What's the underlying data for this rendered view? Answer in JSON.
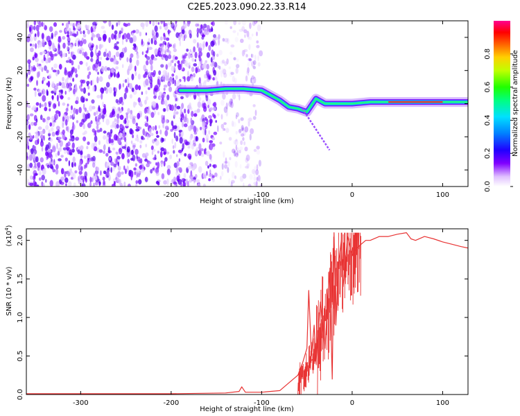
{
  "title": "C2E5.2023.090.22.33.R14",
  "chart_data": [
    {
      "type": "heatmap",
      "xlabel": "Height of straight line (km)",
      "ylabel": "Frequency (Hz)",
      "xlim": [
        -360,
        128
      ],
      "ylim": [
        -50,
        50
      ],
      "xticks": [
        -300,
        -200,
        -100,
        0,
        100
      ],
      "yticks": [
        -40,
        -20,
        0,
        20,
        40
      ],
      "noise_region_x": [
        -360,
        -100
      ],
      "signal_track": {
        "x": [
          -190,
          -160,
          -140,
          -120,
          -100,
          -90,
          -80,
          -70,
          -60,
          -50,
          -40,
          -30,
          -20,
          -10,
          0,
          20,
          40,
          60,
          80,
          100,
          128
        ],
        "y": [
          8,
          8,
          9,
          9,
          8,
          5,
          2,
          -2,
          -3,
          -5,
          3,
          0,
          0,
          0,
          0,
          1,
          1,
          1,
          1,
          1,
          1
        ]
      },
      "colorbar": {
        "label": "Normalized spectral amplitude",
        "range": [
          0,
          1
        ],
        "ticks": [
          "0.0",
          "0.2",
          "0.4",
          "0.6",
          "0.8"
        ],
        "colors": [
          "#ffffff",
          "#d8b0ff",
          "#8000ff",
          "#0000ff",
          "#00a0ff",
          "#00ffd0",
          "#00ff40",
          "#a0ff00",
          "#ffff00",
          "#ff8000",
          "#ff0000",
          "#ff0080"
        ]
      }
    },
    {
      "type": "line",
      "xlabel": "Height of straight line (km)",
      "ylabel": "SNR (10 * v/v)",
      "y_multiplier_label": "(x10",
      "y_multiplier_exp": "4",
      "xlim": [
        -360,
        128
      ],
      "ylim": [
        0,
        2.15
      ],
      "xticks": [
        -300,
        -200,
        -100,
        0,
        100
      ],
      "yticks": [
        "0.0",
        "0.5",
        "1.0",
        "1.5",
        "2.0"
      ],
      "color": "#e83232",
      "series": [
        {
          "x": [
            -360,
            -300,
            -200,
            -140,
            -125,
            -122,
            -118,
            -100,
            -80,
            -70,
            -60,
            -55,
            -50,
            -48,
            -45,
            -42,
            -40,
            -35,
            -30,
            -25,
            -22,
            -20,
            -18,
            -15,
            -12,
            -10,
            -5,
            0,
            5,
            10,
            15,
            20,
            30,
            40,
            50,
            60,
            65,
            70,
            80,
            90,
            100,
            110,
            120,
            128
          ],
          "y": [
            0.01,
            0.01,
            0.01,
            0.02,
            0.04,
            0.1,
            0.03,
            0.03,
            0.05,
            0.15,
            0.25,
            0.4,
            0.6,
            1.35,
            0.5,
            0.9,
            0.4,
            1.2,
            0.6,
            1.6,
            0.2,
            2.1,
            0.9,
            1.7,
            2.0,
            1.4,
            2.05,
            1.8,
            1.9,
            1.95,
            2.0,
            2.0,
            2.05,
            2.05,
            2.08,
            2.1,
            2.02,
            2.0,
            2.05,
            2.02,
            1.98,
            1.95,
            1.92,
            1.9
          ]
        }
      ]
    }
  ]
}
